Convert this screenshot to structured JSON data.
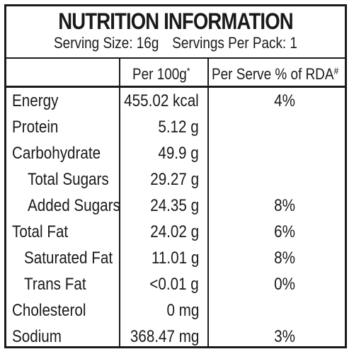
{
  "panel": {
    "title": "NUTRITION INFORMATION",
    "serving_size": "Serving Size: 16g",
    "servings_per_pack": "Servings Per Pack: 1"
  },
  "columns": {
    "per100_label": "Per 100g",
    "per100_mark": "*",
    "per_serve_label": "Per Serve % of RDA",
    "per_serve_mark": "#"
  },
  "rows": [
    {
      "name": "Energy",
      "per100": "455.02 kcal",
      "rda": "4%"
    },
    {
      "name": "Protein",
      "per100": "5.12 g",
      "rda": ""
    },
    {
      "name": "Carbohydrate",
      "per100": "49.9 g",
      "rda": ""
    },
    {
      "name": "Total Sugars",
      "per100": "29.27 g",
      "rda": ""
    },
    {
      "name": "Added Sugars",
      "per100": "24.35 g",
      "rda": "8%"
    },
    {
      "name": "Total Fat",
      "per100": "24.02 g",
      "rda": "6%"
    },
    {
      "name": "Saturated Fat",
      "per100": "11.01 g",
      "rda": "8%"
    },
    {
      "name": "Trans Fat",
      "per100": "<0.01 g",
      "rda": "0%"
    },
    {
      "name": "Cholesterol",
      "per100": "0 mg",
      "rda": ""
    },
    {
      "name": "Sodium",
      "per100": "368.47 mg",
      "rda": "3%"
    }
  ]
}
